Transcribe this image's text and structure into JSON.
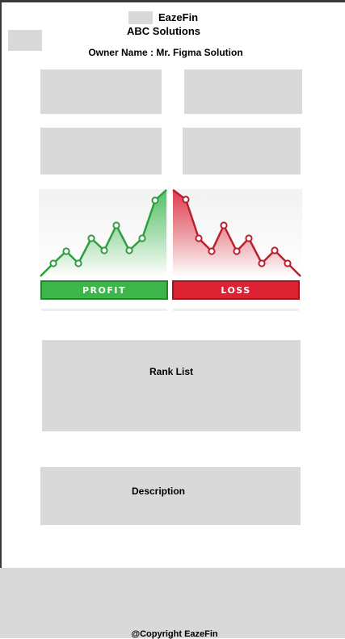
{
  "header": {
    "app_name": "EazeFin",
    "company_name": "ABC Solutions",
    "owner_line": "Owner Name : Mr. Figma Solution"
  },
  "profit_loss_graphic": {
    "profit_label": "PROFIT",
    "loss_label": "LOSS",
    "profit_color": "#3cb54a",
    "loss_color": "#dd2233"
  },
  "sections": {
    "rank_list_label": "Rank List",
    "description_label": "Description"
  },
  "footer": {
    "copyright": "@Copyright EazeFin"
  },
  "colors": {
    "placeholder": "#d9d9d9",
    "background": "#ffffff"
  }
}
